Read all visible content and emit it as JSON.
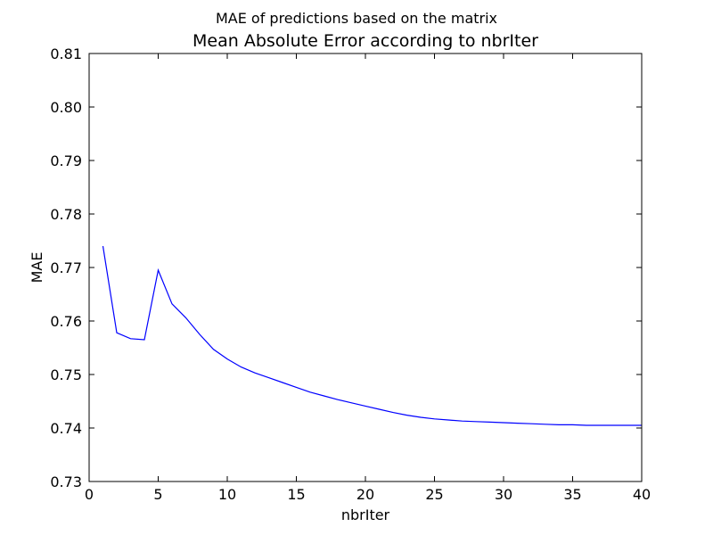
{
  "chart_data": {
    "type": "line",
    "suptitle": "MAE of predictions based on the matrix",
    "title": "Mean Absolute Error according to nbrIter",
    "xlabel": "nbrIter",
    "ylabel": "MAE",
    "xlim": [
      0,
      40
    ],
    "ylim": [
      0.73,
      0.81
    ],
    "xticks": [
      0,
      5,
      10,
      15,
      20,
      25,
      30,
      35,
      40
    ],
    "yticks": [
      0.73,
      0.74,
      0.75,
      0.76,
      0.77,
      0.78,
      0.79,
      0.8,
      0.81
    ],
    "xtick_labels": [
      "0",
      "5",
      "10",
      "15",
      "20",
      "25",
      "30",
      "35",
      "40"
    ],
    "ytick_labels": [
      "0.73",
      "0.74",
      "0.75",
      "0.76",
      "0.77",
      "0.78",
      "0.79",
      "0.80",
      "0.81"
    ],
    "grid": false,
    "series": [
      {
        "color": "#0000ff",
        "x": [
          1,
          2,
          3,
          4,
          5,
          6,
          7,
          8,
          9,
          10,
          11,
          12,
          13,
          14,
          15,
          16,
          17,
          18,
          19,
          20,
          21,
          22,
          23,
          24,
          25,
          26,
          27,
          28,
          29,
          30,
          31,
          32,
          33,
          34,
          35,
          36,
          37,
          38,
          39,
          40
        ],
        "y": [
          0.774,
          0.7578,
          0.7567,
          0.7565,
          0.7695,
          0.7632,
          0.7606,
          0.7575,
          0.7547,
          0.7529,
          0.7514,
          0.7503,
          0.7494,
          0.7485,
          0.7476,
          0.7467,
          0.746,
          0.7453,
          0.7447,
          0.7441,
          0.7435,
          0.7429,
          0.7424,
          0.742,
          0.7417,
          0.7415,
          0.7413,
          0.7412,
          0.7411,
          0.741,
          0.7409,
          0.7408,
          0.7407,
          0.7406,
          0.7406,
          0.7405,
          0.7405,
          0.7405,
          0.7405,
          0.7405
        ]
      }
    ]
  }
}
